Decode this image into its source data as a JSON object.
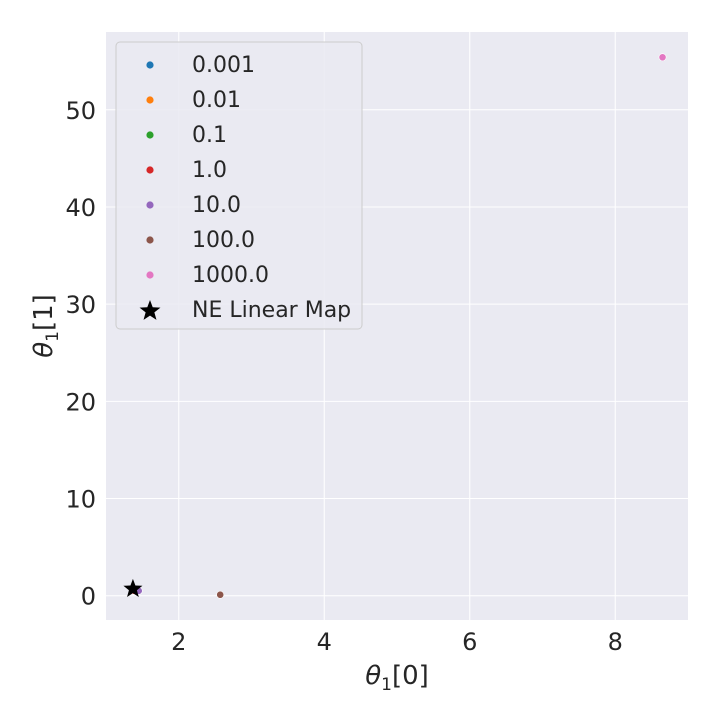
{
  "chart_data": {
    "type": "scatter",
    "title": "",
    "xlabel_sym": "θ",
    "xlabel_sub": "1",
    "xlabel_suffix": "[0]",
    "ylabel_sym": "θ",
    "ylabel_sub": "1",
    "ylabel_suffix": "[1]",
    "xlim": [
      1.0,
      9.0
    ],
    "ylim": [
      -2.5,
      58.0
    ],
    "xticks": [
      2,
      4,
      6,
      8
    ],
    "yticks": [
      0,
      10,
      20,
      30,
      40,
      50
    ],
    "grid": true,
    "legend_position": "top-left",
    "series": [
      {
        "name": "0.001",
        "color": "#1f77b4",
        "marker": "circle",
        "points": [
          [
            1.38,
            0.5
          ]
        ]
      },
      {
        "name": "0.01",
        "color": "#ff7f0e",
        "marker": "circle",
        "points": [
          [
            1.38,
            0.5
          ]
        ]
      },
      {
        "name": "0.1",
        "color": "#2ca02c",
        "marker": "circle",
        "points": [
          [
            1.38,
            0.5
          ]
        ]
      },
      {
        "name": "1.0",
        "color": "#d62728",
        "marker": "circle",
        "points": [
          [
            1.39,
            0.5
          ]
        ]
      },
      {
        "name": "10.0",
        "color": "#9467bd",
        "marker": "circle",
        "points": [
          [
            1.45,
            0.5
          ]
        ]
      },
      {
        "name": "100.0",
        "color": "#8c564b",
        "marker": "circle",
        "points": [
          [
            2.57,
            0.1
          ]
        ]
      },
      {
        "name": "1000.0",
        "color": "#e377c2",
        "marker": "circle",
        "points": [
          [
            8.65,
            55.4
          ]
        ]
      },
      {
        "name": "NE Linear Map",
        "color": "#000000",
        "marker": "star",
        "points": [
          [
            1.37,
            0.7
          ]
        ]
      }
    ]
  }
}
